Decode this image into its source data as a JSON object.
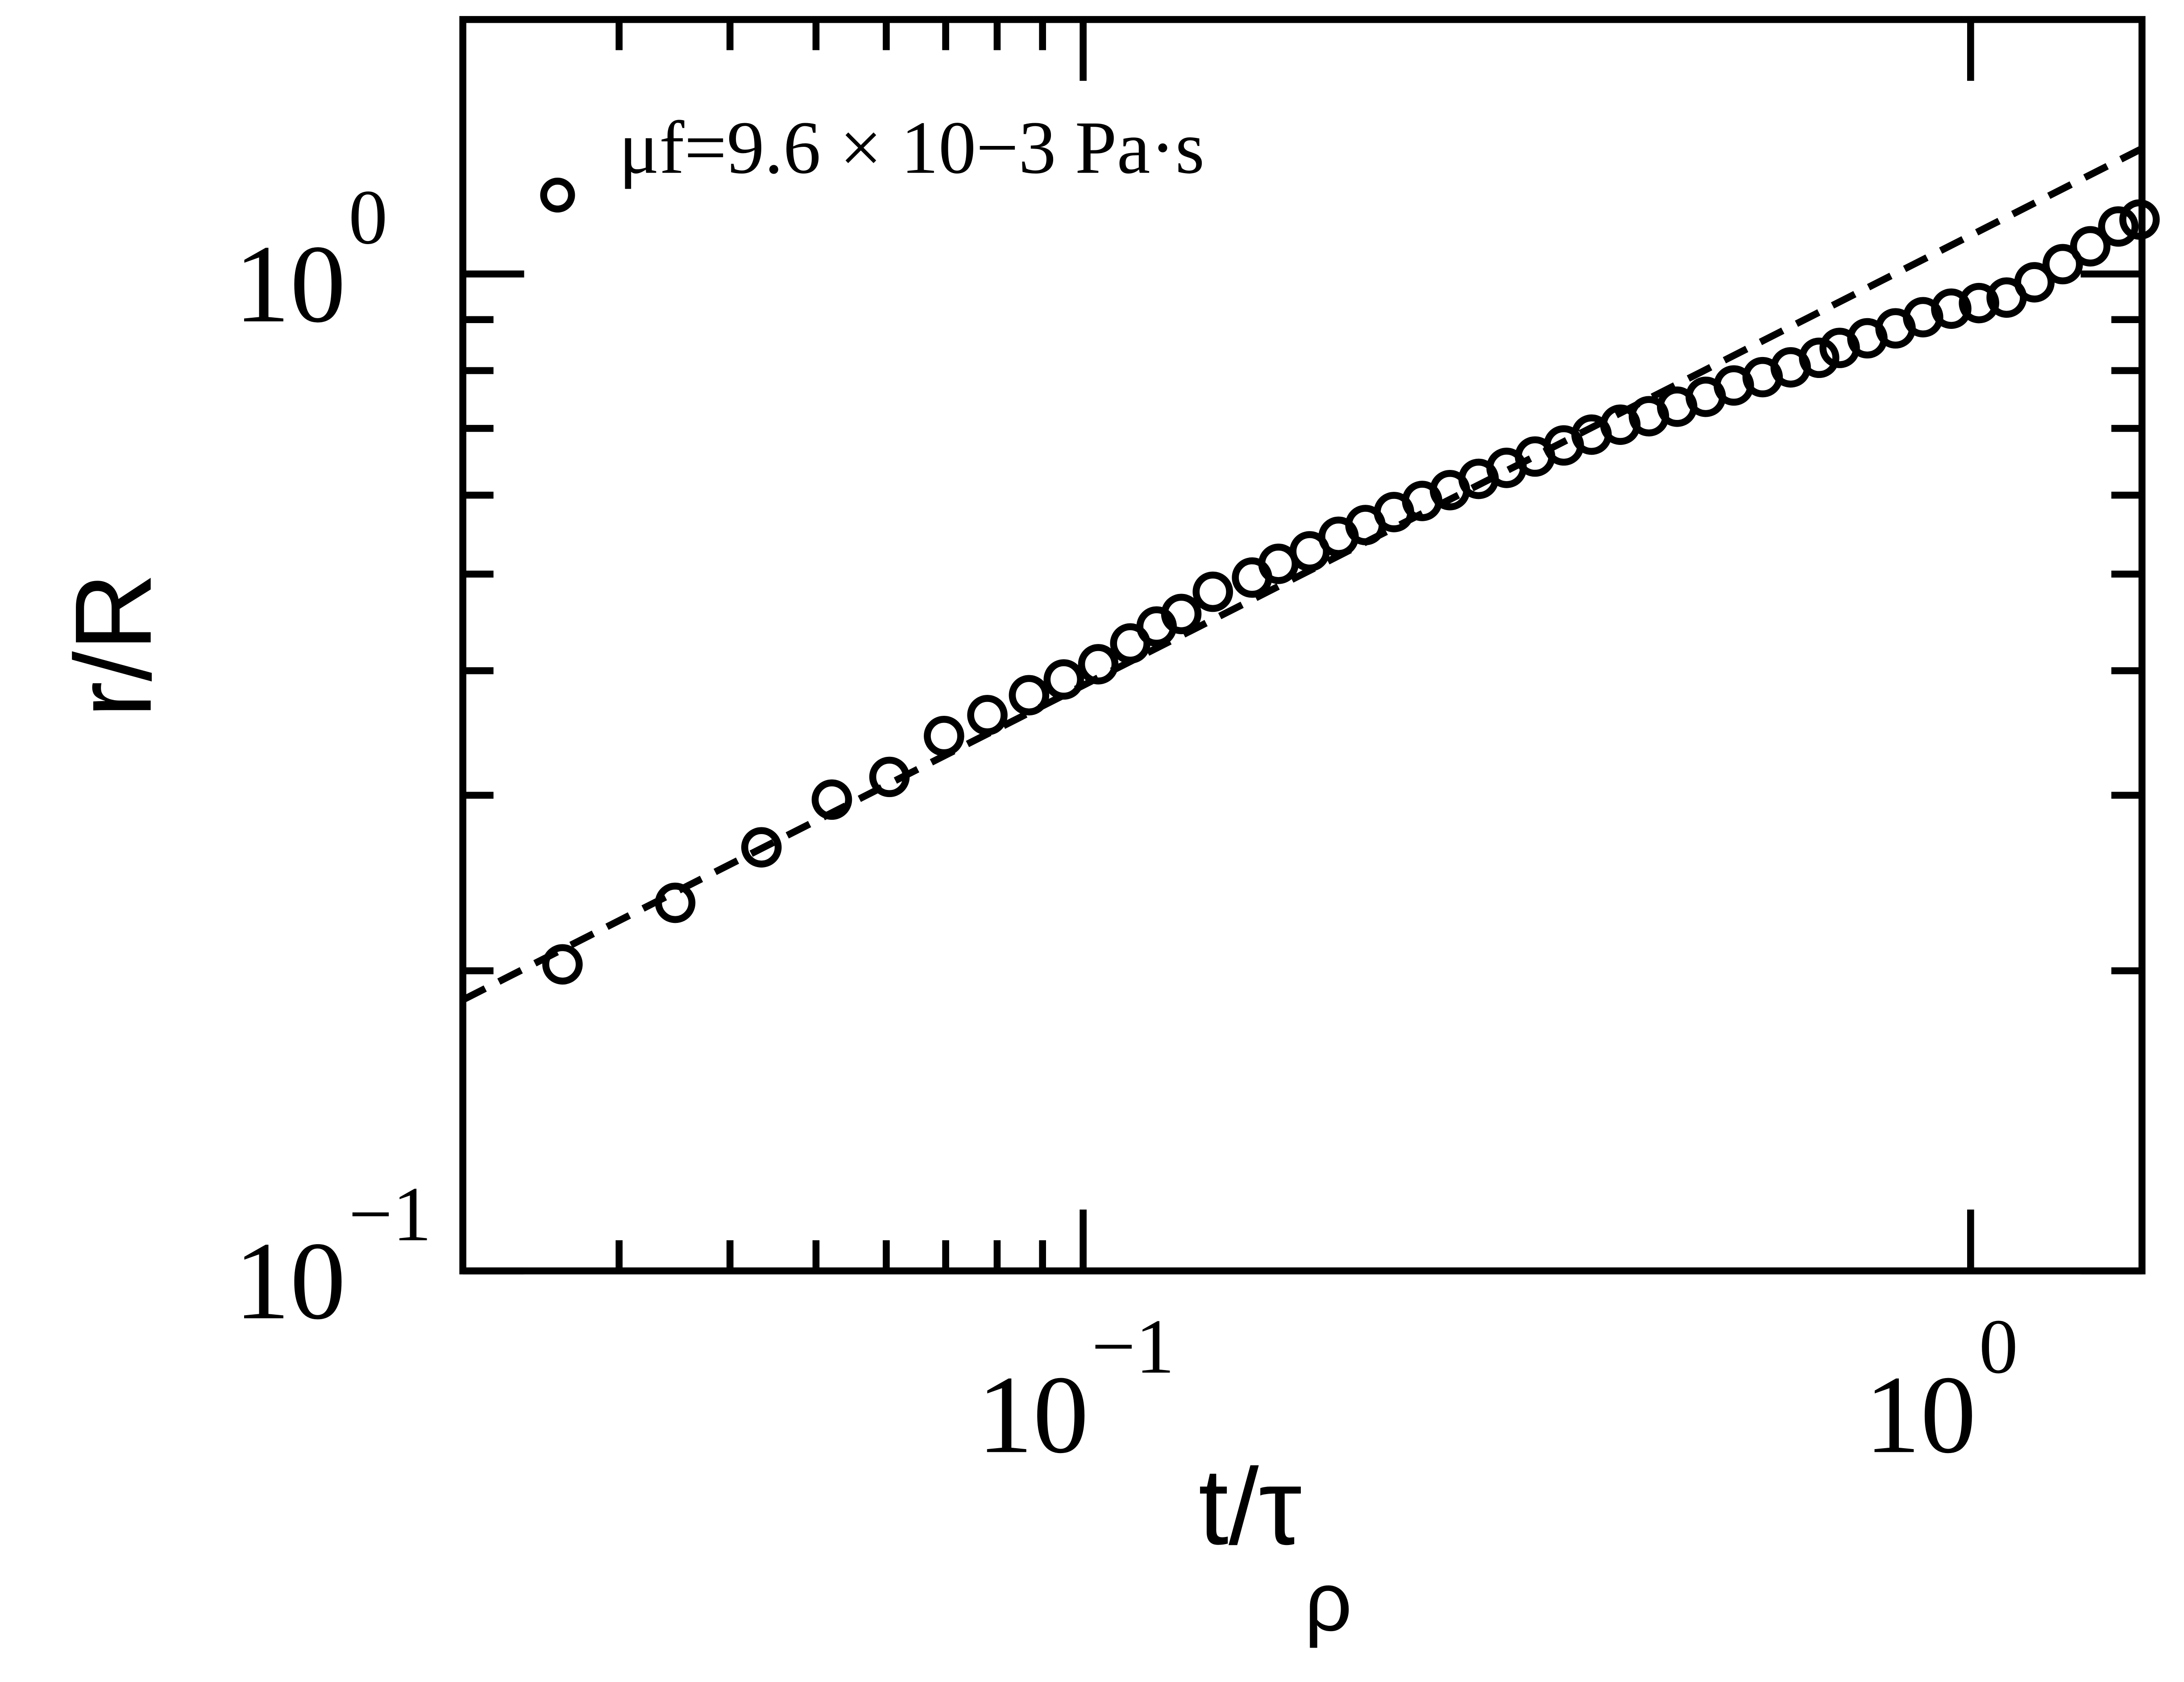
{
  "chart_data": {
    "type": "scatter",
    "log_x": true,
    "log_y": true,
    "xlabel": {
      "text": "t/τ",
      "subscript": "ρ"
    },
    "ylabel": "r/R",
    "xlim": [
      0.02,
      1.56
    ],
    "ylim": [
      0.1,
      1.8
    ],
    "xticks": [
      {
        "value": 0.1,
        "label": "10",
        "exponent": "−1"
      },
      {
        "value": 1,
        "label": "10",
        "exponent": "0"
      }
    ],
    "yticks": [
      {
        "value": 0.1,
        "label": "10",
        "exponent": "−1"
      },
      {
        "value": 1,
        "label": "10",
        "exponent": "0"
      }
    ],
    "xminor": [
      0.03,
      0.04,
      0.05,
      0.06,
      0.07,
      0.08,
      0.09
    ],
    "yminor": [
      0.2,
      0.3,
      0.4,
      0.5,
      0.6,
      0.7,
      0.8,
      0.9
    ],
    "legend": "upper left",
    "series": [
      {
        "name": "μf=9.6 × 10−3 Pa·s",
        "color": "#000000",
        "x": [
          0.0259,
          0.0347,
          0.0434,
          0.0521,
          0.0605,
          0.0697,
          0.078,
          0.0869,
          0.0951,
          0.104,
          0.113,
          0.121,
          0.129,
          0.14,
          0.155,
          0.166,
          0.18,
          0.194,
          0.208,
          0.224,
          0.241,
          0.259,
          0.279,
          0.3,
          0.323,
          0.348,
          0.374,
          0.403,
          0.434,
          0.467,
          0.503,
          0.541,
          0.583,
          0.627,
          0.675,
          0.712,
          0.765,
          0.823,
          0.884,
          0.951,
          1.022,
          1.098,
          1.18,
          1.27,
          1.364,
          1.467,
          1.55
        ],
        "values": [
          0.203,
          0.234,
          0.266,
          0.297,
          0.313,
          0.344,
          0.361,
          0.378,
          0.392,
          0.406,
          0.426,
          0.443,
          0.456,
          0.48,
          0.496,
          0.512,
          0.527,
          0.545,
          0.56,
          0.577,
          0.592,
          0.607,
          0.623,
          0.639,
          0.656,
          0.673,
          0.69,
          0.706,
          0.72,
          0.736,
          0.753,
          0.773,
          0.788,
          0.806,
          0.824,
          0.843,
          0.862,
          0.882,
          0.905,
          0.923,
          0.935,
          0.947,
          0.981,
          1.023,
          1.066,
          1.116,
          1.134
        ]
      }
    ],
    "fit": {
      "color": "#000000",
      "dashed": true,
      "x": [
        0.02,
        1.56
      ],
      "values": [
        0.187,
        1.336
      ]
    }
  }
}
